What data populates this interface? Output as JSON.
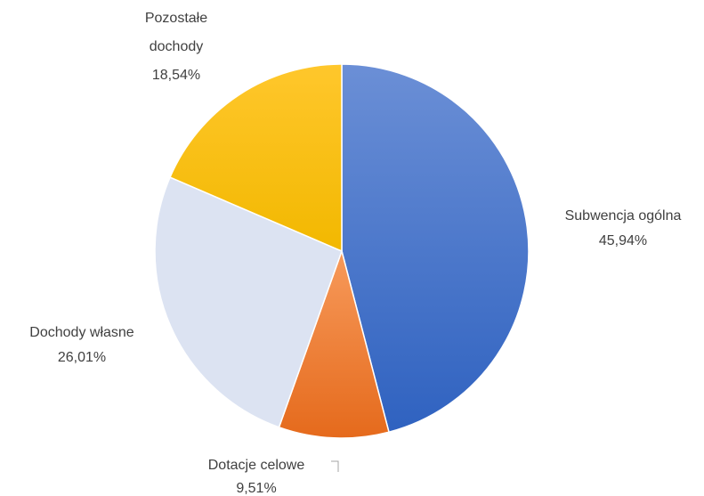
{
  "chart_data": {
    "type": "pie",
    "title": "",
    "slices": [
      {
        "label": "Subwencja ogólna",
        "value": 45.94,
        "value_label": "45,94%",
        "color_light": "#6B8FD6",
        "color_dark": "#2F62C0"
      },
      {
        "label": "Dotacje celowe",
        "value": 9.51,
        "value_label": "9,51%",
        "color_light": "#F79A5B",
        "color_dark": "#E56A1C"
      },
      {
        "label": "Dochody własne",
        "value": 26.01,
        "value_label": "26,01%",
        "color_light": "#DCE3F2",
        "color_dark": "#DCE3F2"
      },
      {
        "label": "Pozostałe dochody",
        "value": 18.54,
        "value_label": "18,54%",
        "color_light": "#FFC72C",
        "color_dark": "#F2B800"
      }
    ],
    "legend": "none",
    "data_labels": "outside"
  }
}
